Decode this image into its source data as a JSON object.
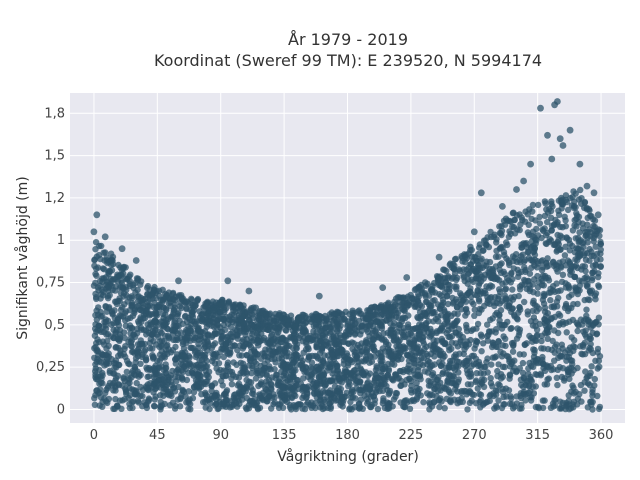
{
  "chart_data": {
    "type": "scatter",
    "title_line1": "År 1979 - 2019",
    "title_line2": "Koordinat (Sweref 99 TM): E 239520, N 5994174",
    "xlabel": "Vågriktning (grader)",
    "ylabel": "Signifikant våghöjd (m)",
    "xlim": [
      -17,
      377
    ],
    "ylim": [
      -0.08,
      1.87
    ],
    "x_ticks": [
      0,
      45,
      90,
      135,
      180,
      225,
      270,
      315,
      360
    ],
    "x_tick_labels": [
      "0",
      "45",
      "90",
      "135",
      "180",
      "225",
      "270",
      "315",
      "360"
    ],
    "y_ticks": [
      0,
      0.25,
      0.5,
      0.75,
      1,
      1.25,
      1.5,
      1.75
    ],
    "y_tick_labels": [
      "0",
      "0,25",
      "0,5",
      "0,75",
      "1",
      "1,2",
      "1,5",
      "1,8"
    ],
    "grid": true,
    "envelope": {
      "x": [
        0,
        15,
        30,
        45,
        60,
        75,
        90,
        105,
        120,
        135,
        150,
        165,
        180,
        195,
        210,
        225,
        240,
        255,
        270,
        285,
        300,
        315,
        330,
        345,
        360
      ],
      "y_min": [
        0.0,
        0.0,
        0.0,
        0.0,
        0.0,
        0.0,
        0.0,
        0.0,
        0.0,
        0.0,
        0.0,
        0.0,
        0.0,
        0.0,
        0.0,
        0.0,
        0.0,
        0.0,
        0.0,
        0.0,
        0.0,
        0.0,
        0.0,
        0.0,
        0.0
      ],
      "y_max": [
        1.02,
        0.9,
        0.78,
        0.72,
        0.68,
        0.66,
        0.65,
        0.62,
        0.6,
        0.56,
        0.56,
        0.58,
        0.58,
        0.6,
        0.64,
        0.7,
        0.78,
        0.88,
        0.98,
        1.08,
        1.18,
        1.22,
        1.25,
        1.32,
        1.05
      ]
    },
    "highlight_points": [
      {
        "x": 2,
        "y": 1.15
      },
      {
        "x": 0,
        "y": 1.05
      },
      {
        "x": 8,
        "y": 1.02
      },
      {
        "x": 20,
        "y": 0.95
      },
      {
        "x": 30,
        "y": 0.88
      },
      {
        "x": 60,
        "y": 0.76
      },
      {
        "x": 95,
        "y": 0.76
      },
      {
        "x": 110,
        "y": 0.7
      },
      {
        "x": 160,
        "y": 0.67
      },
      {
        "x": 205,
        "y": 0.72
      },
      {
        "x": 222,
        "y": 0.78
      },
      {
        "x": 245,
        "y": 0.9
      },
      {
        "x": 270,
        "y": 1.05
      },
      {
        "x": 275,
        "y": 1.28
      },
      {
        "x": 290,
        "y": 1.2
      },
      {
        "x": 305,
        "y": 1.35
      },
      {
        "x": 310,
        "y": 1.45
      },
      {
        "x": 317,
        "y": 1.78
      },
      {
        "x": 322,
        "y": 1.62
      },
      {
        "x": 327,
        "y": 1.8
      },
      {
        "x": 329,
        "y": 1.82
      },
      {
        "x": 331,
        "y": 1.6
      },
      {
        "x": 338,
        "y": 1.65
      },
      {
        "x": 345,
        "y": 1.45
      },
      {
        "x": 350,
        "y": 1.32
      },
      {
        "x": 355,
        "y": 1.28
      },
      {
        "x": 358,
        "y": 1.15
      },
      {
        "x": 325,
        "y": 1.48
      },
      {
        "x": 333,
        "y": 1.56
      },
      {
        "x": 300,
        "y": 1.3
      }
    ],
    "point_color": "#2e546b",
    "background_color": "#e8e8f0",
    "grid_color": "#ffffff"
  }
}
